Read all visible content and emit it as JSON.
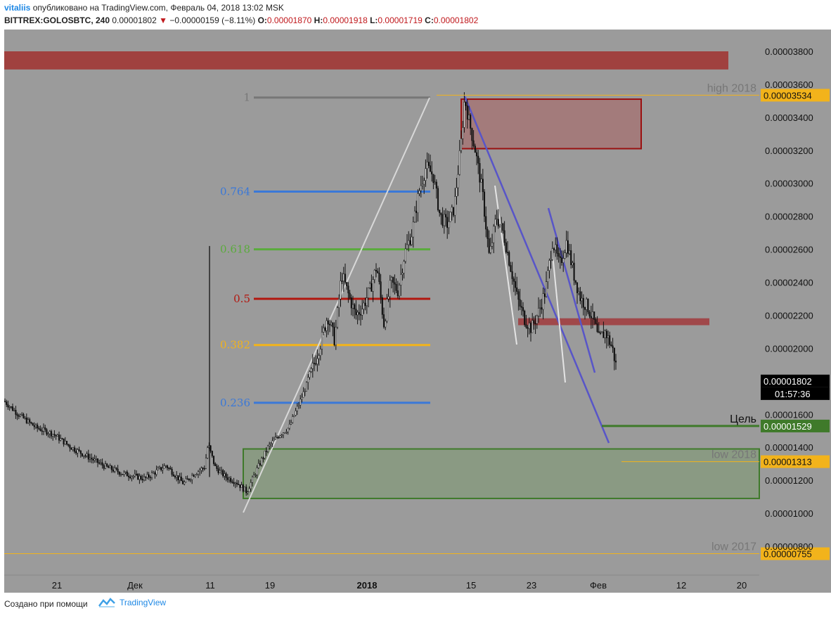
{
  "header": {
    "user": "vitaliis",
    "published": "опубликовано на TradingView.com, Февраль 04, 2018 13:02 MSK",
    "symbol": "BITTREX:GOLOSBTC, 240",
    "last": "0.00001802",
    "change": "−0.00000159 (−8.11%)",
    "o_label": "O:",
    "o_value": "0.00001870",
    "h_label": "H:",
    "h_value": "0.00001918",
    "l_label": "L:",
    "l_value": "0.00001719",
    "c_label": "C:",
    "c_value": "0.00001802"
  },
  "footer": {
    "made_with": "Создано при помощи",
    "brand": "TradingView"
  },
  "chart_data": {
    "type": "candlestick",
    "y_range": [
      6.9e-06,
      4.03e-05
    ],
    "y_ticks": [
      "0.00003800",
      "0.00003600",
      "0.00003400",
      "0.00003200",
      "0.00003000",
      "0.00002800",
      "0.00002600",
      "0.00002400",
      "0.00002200",
      "0.00002000",
      "0.00001600",
      "0.00001400",
      "0.00001200",
      "0.00001000",
      "0.00000800"
    ],
    "x_ticks": [
      {
        "label": "21",
        "bold": false
      },
      {
        "label": "Дек",
        "bold": false
      },
      {
        "label": "11",
        "bold": false
      },
      {
        "label": "19",
        "bold": false
      },
      {
        "label": "2018",
        "bold": true
      },
      {
        "label": "15",
        "bold": false
      },
      {
        "label": "23",
        "bold": false
      },
      {
        "label": "Фев",
        "bold": false
      },
      {
        "label": "12",
        "bold": false
      },
      {
        "label": "20",
        "bold": false
      }
    ],
    "current_price": "0.00001802",
    "countdown": "01:57:36",
    "levels": [
      {
        "name": "high 2018",
        "value": "0.00003534",
        "price": 3.534e-05
      },
      {
        "name": "Цель",
        "value": "0.00001529",
        "price": 1.529e-05
      },
      {
        "name": "low 2018",
        "value": "0.00001313",
        "price": 1.313e-05
      },
      {
        "name": "low 2017",
        "value": "0.00000755",
        "price": 7.55e-06
      }
    ],
    "fibonacci": [
      {
        "label": "1",
        "price": 3.52e-05,
        "color": "#777777"
      },
      {
        "label": "0.764",
        "price": 2.95e-05,
        "color": "#3a78d8"
      },
      {
        "label": "0.618",
        "price": 2.6e-05,
        "color": "#5aab3c"
      },
      {
        "label": "0.5",
        "price": 2.3e-05,
        "color": "#b2170f"
      },
      {
        "label": "0.382",
        "price": 2.02e-05,
        "color": "#f2b31b"
      },
      {
        "label": "0.236",
        "price": 1.67e-05,
        "color": "#3a78d8"
      }
    ],
    "zones": [
      {
        "name": "top-resistance",
        "price_top": 3.8e-05,
        "price_bottom": 3.69e-05,
        "fill": "#a0413f"
      },
      {
        "name": "supply-box",
        "price_top": 3.51e-05,
        "price_bottom": 3.21e-05,
        "fill": "#a57676",
        "stroke": "#9a1010"
      },
      {
        "name": "mid-resistance",
        "price_top": 2.182e-05,
        "price_bottom": 2.14e-05,
        "fill": "#a0484a"
      },
      {
        "name": "demand-box",
        "price_top": 1.39e-05,
        "price_bottom": 1.09e-05,
        "fill": "#879a7f",
        "stroke": "#3f7a2a"
      }
    ],
    "price_path": [
      [
        0,
        1.68e-05
      ],
      [
        20,
        1.6e-05
      ],
      [
        45,
        1.52e-05
      ],
      [
        70,
        1.48e-05
      ],
      [
        95,
        1.4e-05
      ],
      [
        120,
        1.34e-05
      ],
      [
        145,
        1.28e-05
      ],
      [
        170,
        1.24e-05
      ],
      [
        200,
        1.21e-05
      ],
      [
        230,
        1.29e-05
      ],
      [
        255,
        1.18e-05
      ],
      [
        270,
        1.24e-05
      ],
      [
        285,
        1.28e-05
      ],
      [
        290,
        1.42e-05
      ],
      [
        300,
        1.28e-05
      ],
      [
        315,
        1.22e-05
      ],
      [
        330,
        1.19e-05
      ],
      [
        345,
        1.13e-05
      ],
      [
        360,
        1.27e-05
      ],
      [
        375,
        1.4e-05
      ],
      [
        390,
        1.47e-05
      ],
      [
        405,
        1.52e-05
      ],
      [
        420,
        1.67e-05
      ],
      [
        435,
        1.83e-05
      ],
      [
        450,
        2.03e-05
      ],
      [
        460,
        2.2e-05
      ],
      [
        470,
        2.05e-05
      ],
      [
        480,
        2.45e-05
      ],
      [
        490,
        2.32e-05
      ],
      [
        500,
        2.2e-05
      ],
      [
        510,
        2.25e-05
      ],
      [
        520,
        2.35e-05
      ],
      [
        530,
        2.5e-05
      ],
      [
        540,
        2.15e-05
      ],
      [
        550,
        2.4e-05
      ],
      [
        560,
        2.35e-05
      ],
      [
        570,
        2.58e-05
      ],
      [
        580,
        2.7e-05
      ],
      [
        590,
        2.95e-05
      ],
      [
        600,
        3.1e-05
      ],
      [
        610,
        3.05e-05
      ],
      [
        620,
        2.8e-05
      ],
      [
        630,
        2.75e-05
      ],
      [
        640,
        2.85e-05
      ],
      [
        650,
        3.25e-05
      ],
      [
        655,
        3.52e-05
      ],
      [
        660,
        3.4e-05
      ],
      [
        670,
        3.2e-05
      ],
      [
        680,
        2.95e-05
      ],
      [
        690,
        2.55e-05
      ],
      [
        700,
        2.8e-05
      ],
      [
        710,
        2.7e-05
      ],
      [
        720,
        2.5e-05
      ],
      [
        730,
        2.3e-05
      ],
      [
        740,
        2.18e-05
      ],
      [
        750,
        2.12e-05
      ],
      [
        760,
        2.22e-05
      ],
      [
        770,
        2.35e-05
      ],
      [
        780,
        2.65e-05
      ],
      [
        790,
        2.5e-05
      ],
      [
        800,
        2.65e-05
      ],
      [
        810,
        2.45e-05
      ],
      [
        820,
        2.3e-05
      ],
      [
        830,
        2.25e-05
      ],
      [
        840,
        2.15e-05
      ],
      [
        845,
        2.05e-05
      ],
      [
        855,
        2.1e-05
      ],
      [
        865,
        2e-05
      ],
      [
        875,
        1.8e-05
      ]
    ]
  }
}
